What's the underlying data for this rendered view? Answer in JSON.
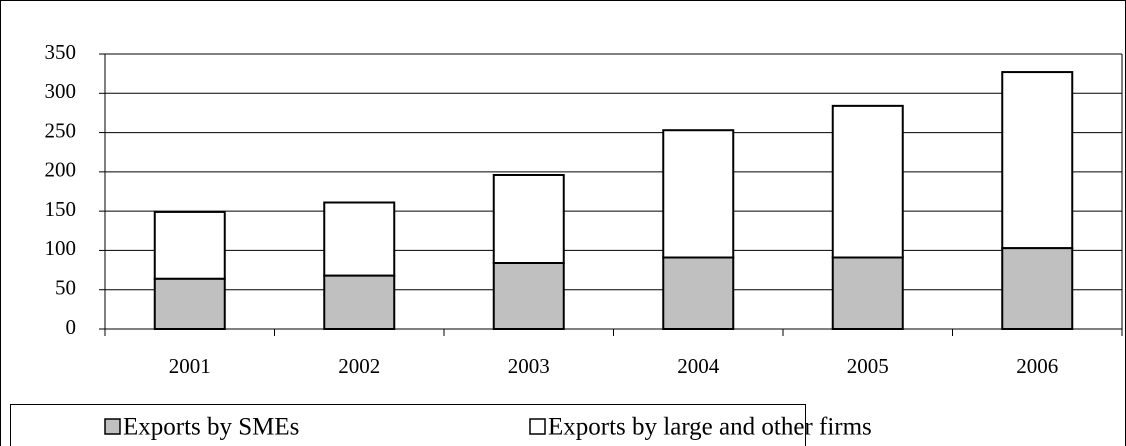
{
  "chart_data": {
    "type": "stacked_bar",
    "categories": [
      "2001",
      "2002",
      "2003",
      "2004",
      "2005",
      "2006"
    ],
    "series": [
      {
        "name": "Exports by SMEs",
        "color": "#c0c0c0",
        "values": [
          64,
          68,
          84,
          91,
          91,
          103
        ]
      },
      {
        "name": "Exports by large and other firms",
        "color": "#ffffff",
        "values": [
          85,
          93,
          112,
          162,
          193,
          224
        ]
      }
    ],
    "ylim": [
      0,
      350
    ],
    "yticks": [
      0,
      50,
      100,
      150,
      200,
      250,
      300,
      350
    ],
    "grid": true
  }
}
